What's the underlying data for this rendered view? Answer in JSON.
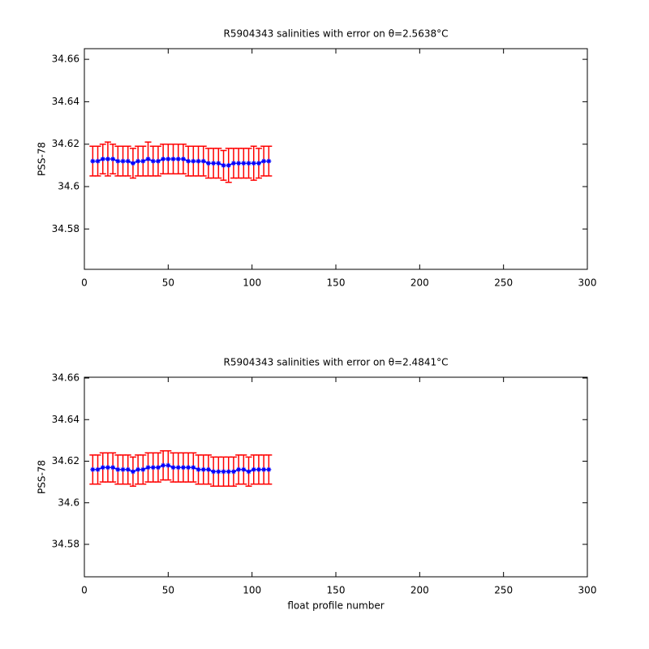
{
  "chart_data": [
    {
      "type": "errorbar",
      "title": "R5904343 salinities with error on θ=2.5638°C",
      "ylabel": "PSS-78",
      "x": [
        5,
        8,
        11,
        14,
        17,
        20,
        23,
        26,
        29,
        32,
        35,
        38,
        41,
        44,
        47,
        50,
        53,
        56,
        59,
        62,
        65,
        68,
        71,
        74,
        77,
        80,
        83,
        86,
        89,
        92,
        95,
        98,
        101,
        104,
        107,
        110
      ],
      "series": [
        {
          "color": "#0000ff",
          "error_color": "#ff0000",
          "values": [
            34.612,
            34.612,
            34.613,
            34.613,
            34.613,
            34.612,
            34.612,
            34.612,
            34.611,
            34.612,
            34.612,
            34.613,
            34.612,
            34.612,
            34.613,
            34.613,
            34.613,
            34.613,
            34.613,
            34.612,
            34.612,
            34.612,
            34.612,
            34.611,
            34.611,
            34.611,
            34.61,
            34.61,
            34.611,
            34.611,
            34.611,
            34.611,
            34.611,
            34.611,
            34.612,
            34.612
          ],
          "errors": [
            0.007,
            0.007,
            0.007,
            0.008,
            0.007,
            0.007,
            0.007,
            0.007,
            0.007,
            0.007,
            0.007,
            0.008,
            0.007,
            0.007,
            0.007,
            0.007,
            0.007,
            0.007,
            0.007,
            0.007,
            0.007,
            0.007,
            0.007,
            0.007,
            0.007,
            0.007,
            0.007,
            0.008,
            0.007,
            0.007,
            0.007,
            0.007,
            0.008,
            0.007,
            0.007,
            0.007
          ]
        }
      ],
      "xlim": [
        0,
        300
      ],
      "xticks": [
        0,
        50,
        100,
        150,
        200,
        250,
        300
      ],
      "ylim": [
        34.561,
        34.665
      ],
      "yticks": [
        34.58,
        34.6,
        34.62,
        34.64,
        34.66
      ]
    },
    {
      "type": "errorbar",
      "title": "R5904343 salinities with error on θ=2.4841°C",
      "ylabel": "PSS-78",
      "xlabel": "float profile number",
      "x": [
        5,
        8,
        11,
        14,
        17,
        20,
        23,
        26,
        29,
        32,
        35,
        38,
        41,
        44,
        47,
        50,
        53,
        56,
        59,
        62,
        65,
        68,
        71,
        74,
        77,
        80,
        83,
        86,
        89,
        92,
        95,
        98,
        101,
        104,
        107,
        110
      ],
      "series": [
        {
          "color": "#0000ff",
          "error_color": "#ff0000",
          "values": [
            34.616,
            34.616,
            34.617,
            34.617,
            34.617,
            34.616,
            34.616,
            34.616,
            34.615,
            34.616,
            34.616,
            34.617,
            34.617,
            34.617,
            34.618,
            34.618,
            34.617,
            34.617,
            34.617,
            34.617,
            34.617,
            34.616,
            34.616,
            34.616,
            34.615,
            34.615,
            34.615,
            34.615,
            34.615,
            34.616,
            34.616,
            34.615,
            34.616,
            34.616,
            34.616,
            34.616
          ],
          "errors": [
            0.007,
            0.007,
            0.007,
            0.007,
            0.007,
            0.007,
            0.007,
            0.007,
            0.007,
            0.007,
            0.007,
            0.007,
            0.007,
            0.007,
            0.007,
            0.007,
            0.007,
            0.007,
            0.007,
            0.007,
            0.007,
            0.007,
            0.007,
            0.007,
            0.007,
            0.007,
            0.007,
            0.007,
            0.007,
            0.007,
            0.007,
            0.007,
            0.007,
            0.007,
            0.007,
            0.007
          ]
        }
      ],
      "xlim": [
        0,
        300
      ],
      "xticks": [
        0,
        50,
        100,
        150,
        200,
        250,
        300
      ],
      "ylim": [
        34.5644,
        34.6604
      ],
      "yticks": [
        34.58,
        34.6,
        34.62,
        34.64,
        34.66
      ]
    }
  ]
}
